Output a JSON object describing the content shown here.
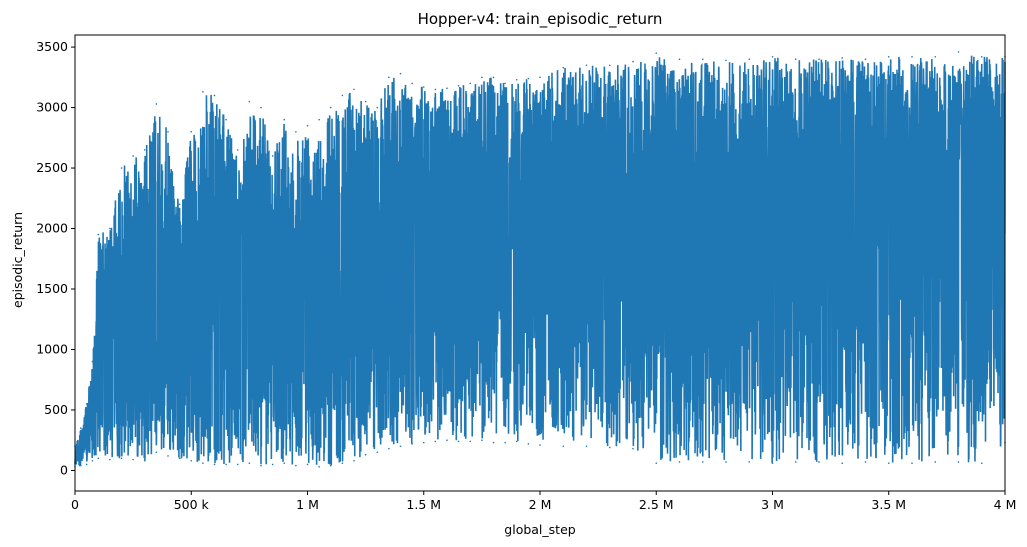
{
  "chart_data": {
    "type": "line",
    "title": "Hopper-v4: train_episodic_return",
    "xlabel": "global_step",
    "ylabel": "episodic_return",
    "xlim": [
      0,
      4000000
    ],
    "ylim": [
      -170,
      3600
    ],
    "xticks": [
      {
        "value": 0,
        "label": "0"
      },
      {
        "value": 500000,
        "label": "500 k"
      },
      {
        "value": 1000000,
        "label": "1 M"
      },
      {
        "value": 1500000,
        "label": "1.5 M"
      },
      {
        "value": 2000000,
        "label": "2 M"
      },
      {
        "value": 2500000,
        "label": "2.5 M"
      },
      {
        "value": 3000000,
        "label": "3 M"
      },
      {
        "value": 3500000,
        "label": "3.5 M"
      },
      {
        "value": 4000000,
        "label": "4 M"
      }
    ],
    "yticks": [
      {
        "value": 0,
        "label": "0"
      },
      {
        "value": 500,
        "label": "500"
      },
      {
        "value": 1000,
        "label": "1000"
      },
      {
        "value": 1500,
        "label": "1500"
      },
      {
        "value": 2000,
        "label": "2000"
      },
      {
        "value": 2500,
        "label": "2500"
      },
      {
        "value": 3000,
        "label": "3000"
      },
      {
        "value": 3500,
        "label": "3500"
      }
    ],
    "grid": false,
    "series_color": "#1f77b4",
    "series": [
      {
        "x": [
          0,
          25000,
          50000,
          75000,
          100000,
          150000,
          200000,
          250000,
          300000,
          350000,
          400000,
          450000,
          500000,
          550000,
          600000,
          650000,
          700000,
          750000,
          800000,
          850000,
          900000,
          950000,
          1000000,
          1050000,
          1100000,
          1150000,
          1200000,
          1250000,
          1300000,
          1350000,
          1400000,
          1450000,
          1500000,
          1550000,
          1600000,
          1650000,
          1700000,
          1750000,
          1800000,
          1850000,
          1900000,
          1950000,
          2000000,
          2100000,
          2200000,
          2300000,
          2400000,
          2500000,
          2600000,
          2700000,
          2800000,
          2900000,
          3000000,
          3100000,
          3200000,
          3300000,
          3400000,
          3500000,
          3600000,
          3700000,
          3800000,
          3900000,
          4000000
        ],
        "min": [
          30,
          40,
          50,
          80,
          100,
          90,
          100,
          90,
          80,
          150,
          120,
          100,
          80,
          60,
          50,
          50,
          50,
          60,
          40,
          50,
          60,
          40,
          50,
          30,
          40,
          60,
          80,
          130,
          150,
          180,
          200,
          220,
          230,
          240,
          250,
          240,
          240,
          250,
          230,
          230,
          240,
          220,
          210,
          200,
          200,
          190,
          180,
          60,
          70,
          70,
          70,
          70,
          60,
          70,
          70,
          60,
          70,
          60,
          60,
          70,
          70,
          60,
          230
        ],
        "max": [
          200,
          350,
          550,
          900,
          1950,
          2000,
          2500,
          2600,
          2650,
          3030,
          2800,
          2200,
          2800,
          3130,
          3100,
          2900,
          2650,
          3050,
          3000,
          2600,
          2900,
          2800,
          2850,
          2900,
          3000,
          3100,
          3150,
          3050,
          3000,
          3250,
          3280,
          3200,
          3170,
          3150,
          3160,
          3180,
          3200,
          3250,
          3250,
          3200,
          3230,
          3240,
          3250,
          3330,
          3350,
          3350,
          3380,
          3450,
          3400,
          3400,
          3390,
          3400,
          3420,
          3400,
          3400,
          3410,
          3400,
          3420,
          3420,
          3420,
          3460,
          3420,
          3420
        ],
        "mean": [
          120,
          200,
          300,
          450,
          800,
          900,
          1000,
          1050,
          1100,
          1150,
          1150,
          1150,
          1200,
          1250,
          1250,
          1250,
          1200,
          1250,
          1250,
          1200,
          1250,
          1250,
          1300,
          1350,
          1400,
          1450,
          1500,
          1550,
          1600,
          1650,
          1700,
          1750,
          1750,
          1750,
          1800,
          1800,
          1800,
          1800,
          1850,
          1850,
          1850,
          1850,
          1900,
          1900,
          1950,
          1950,
          2000,
          1950,
          1950,
          2000,
          2000,
          2000,
          2000,
          2000,
          2050,
          2050,
          2050,
          2050,
          2050,
          2100,
          2100,
          2100,
          2100
        ]
      }
    ]
  }
}
